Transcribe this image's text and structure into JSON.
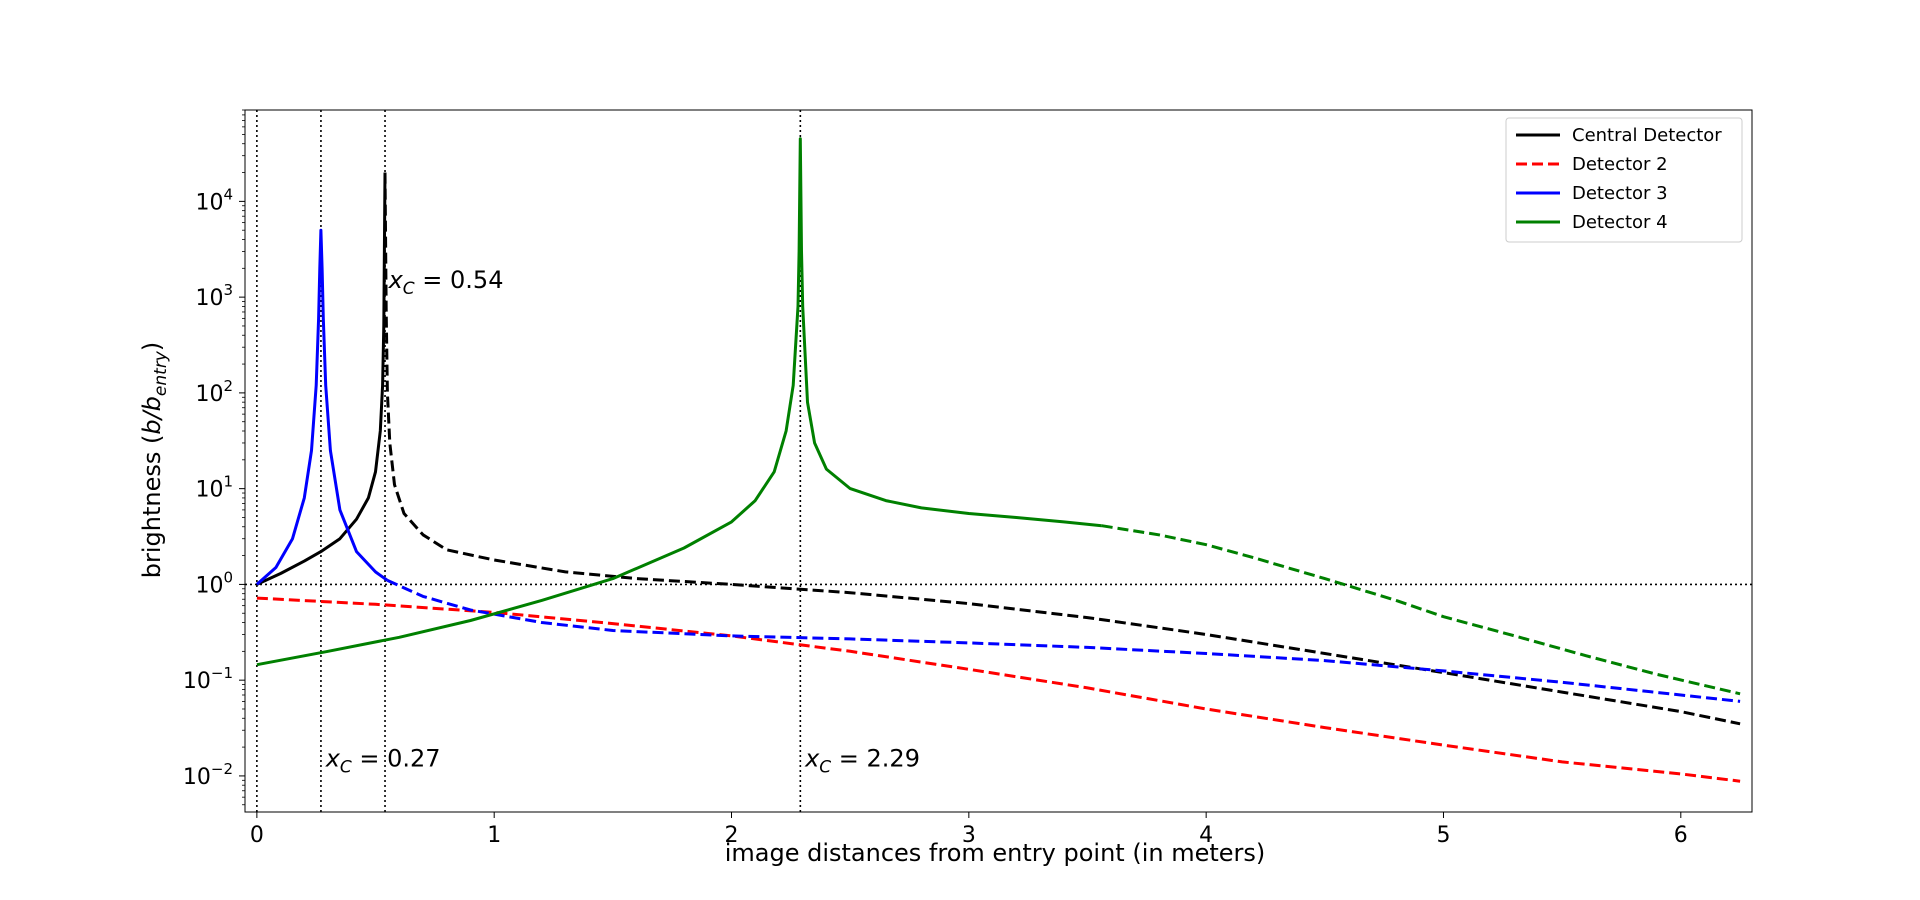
{
  "chart_data": {
    "type": "line",
    "title": "",
    "xlabel": "image distances from entry point (in meters)",
    "ylabel_main": "brightness (",
    "ylabel_b": "b",
    "ylabel_slash": "/",
    "ylabel_bentry": "b",
    "ylabel_sub": "entry",
    "ylabel_close": ")",
    "xlim": [
      -0.05,
      6.3
    ],
    "ylim": [
      0.0042,
      90000
    ],
    "yscale": "log",
    "grid": false,
    "legend_position": "top-right",
    "xticks": [
      "0",
      "1",
      "2",
      "3",
      "4",
      "5",
      "6"
    ],
    "xtick_values": [
      0,
      1,
      2,
      3,
      4,
      5,
      6
    ],
    "yticks": [
      {
        "base": "10",
        "exp": "−2",
        "value": 0.01
      },
      {
        "base": "10",
        "exp": "−1",
        "value": 0.1
      },
      {
        "base": "10",
        "exp": "0",
        "value": 1
      },
      {
        "base": "10",
        "exp": "1",
        "value": 10
      },
      {
        "base": "10",
        "exp": "2",
        "value": 100
      },
      {
        "base": "10",
        "exp": "3",
        "value": 1000
      },
      {
        "base": "10",
        "exp": "4",
        "value": 10000
      }
    ],
    "reference_lines": {
      "vertical_x": [
        0,
        0.27,
        0.54,
        2.29
      ],
      "horizontal_y": 1,
      "style": "dotted"
    },
    "annotations": [
      {
        "x": 0.555,
        "y": 1250,
        "symbol": "x",
        "sub": "C",
        "text": " = 0.54"
      },
      {
        "x": 0.29,
        "y": 0.0125,
        "symbol": "x",
        "sub": "C",
        "text": " = 0.27"
      },
      {
        "x": 2.31,
        "y": 0.0125,
        "symbol": "x",
        "sub": "C",
        "text": " = 2.29"
      }
    ],
    "series": [
      {
        "name": "Central Detector",
        "color": "#000000",
        "legend_style": "solid",
        "segments": [
          {
            "style": "solid",
            "x": [
              0,
              0.1,
              0.2,
              0.27,
              0.35,
              0.42,
              0.47,
              0.5,
              0.52,
              0.53,
              0.535,
              0.54
            ],
            "y": [
              1.0,
              1.3,
              1.75,
              2.2,
              3.0,
              4.8,
              8.0,
              15.0,
              40.0,
              120.0,
              500.0,
              20000.0
            ]
          },
          {
            "style": "dashed",
            "x": [
              0.54,
              0.545,
              0.55,
              0.56,
              0.58,
              0.62,
              0.7,
              0.8,
              1.0,
              1.3,
              1.6,
              2.0,
              2.5,
              3.0,
              3.5,
              4.0,
              4.5,
              5.0,
              5.5,
              6.0,
              6.25
            ],
            "y": [
              20000.0,
              700.0,
              100.0,
              30.0,
              11.0,
              5.5,
              3.3,
              2.3,
              1.8,
              1.35,
              1.15,
              1.0,
              0.82,
              0.63,
              0.45,
              0.3,
              0.19,
              0.12,
              0.075,
              0.047,
              0.035
            ]
          }
        ]
      },
      {
        "name": "Detector 2",
        "color": "#ff0000",
        "legend_style": "dashed",
        "segments": [
          {
            "style": "dashed",
            "x": [
              0,
              0.5,
              1.0,
              1.5,
              2.0,
              2.5,
              3.0,
              3.5,
              4.0,
              4.5,
              5.0,
              5.5,
              6.0,
              6.25
            ],
            "y": [
              0.72,
              0.62,
              0.51,
              0.39,
              0.29,
              0.2,
              0.13,
              0.083,
              0.05,
              0.032,
              0.021,
              0.014,
              0.0105,
              0.0088
            ]
          }
        ]
      },
      {
        "name": "Detector 3",
        "color": "#0000ff",
        "legend_style": "solid",
        "segments": [
          {
            "style": "solid",
            "x": [
              0,
              0.08,
              0.15,
              0.2,
              0.23,
              0.25,
              0.26,
              0.265,
              0.27,
              0.275,
              0.28,
              0.29,
              0.31,
              0.35,
              0.42,
              0.5,
              0.55
            ],
            "y": [
              1.0,
              1.5,
              3.0,
              8.0,
              25.0,
              120.0,
              600.0,
              2000.0,
              5000.0,
              2000.0,
              600.0,
              120.0,
              25.0,
              6.0,
              2.2,
              1.35,
              1.1
            ]
          },
          {
            "style": "dashed",
            "x": [
              0.55,
              0.7,
              0.9,
              1.2,
              1.5,
              2.0,
              2.5,
              3.0,
              3.5,
              4.0,
              4.5,
              5.0,
              5.5,
              6.0,
              6.25
            ],
            "y": [
              1.1,
              0.75,
              0.54,
              0.4,
              0.33,
              0.29,
              0.27,
              0.245,
              0.22,
              0.19,
              0.16,
              0.125,
              0.095,
              0.07,
              0.06
            ]
          }
        ]
      },
      {
        "name": "Detector 4",
        "color": "#008000",
        "legend_style": "solid",
        "segments": [
          {
            "style": "solid",
            "x": [
              0,
              0.3,
              0.6,
              0.9,
              1.2,
              1.5,
              1.8,
              2.0,
              2.1,
              2.18,
              2.23,
              2.26,
              2.28,
              2.285,
              2.29,
              2.295,
              2.3,
              2.32,
              2.35,
              2.4,
              2.5,
              2.65,
              2.8,
              3.0,
              3.2,
              3.4,
              3.56
            ],
            "y": [
              0.145,
              0.2,
              0.28,
              0.42,
              0.68,
              1.15,
              2.4,
              4.5,
              7.5,
              15.0,
              40.0,
              120.0,
              800.0,
              3000.0,
              45000.0,
              3000.0,
              800.0,
              80.0,
              30.0,
              16.0,
              10.0,
              7.5,
              6.3,
              5.5,
              5.0,
              4.5,
              4.1
            ]
          },
          {
            "style": "dashed",
            "x": [
              3.56,
              3.8,
              4.0,
              4.2,
              4.5,
              4.8,
              5.0,
              5.3,
              5.6,
              5.9,
              6.25
            ],
            "y": [
              4.1,
              3.3,
              2.6,
              1.9,
              1.15,
              0.68,
              0.46,
              0.29,
              0.18,
              0.115,
              0.072
            ]
          }
        ]
      }
    ]
  }
}
